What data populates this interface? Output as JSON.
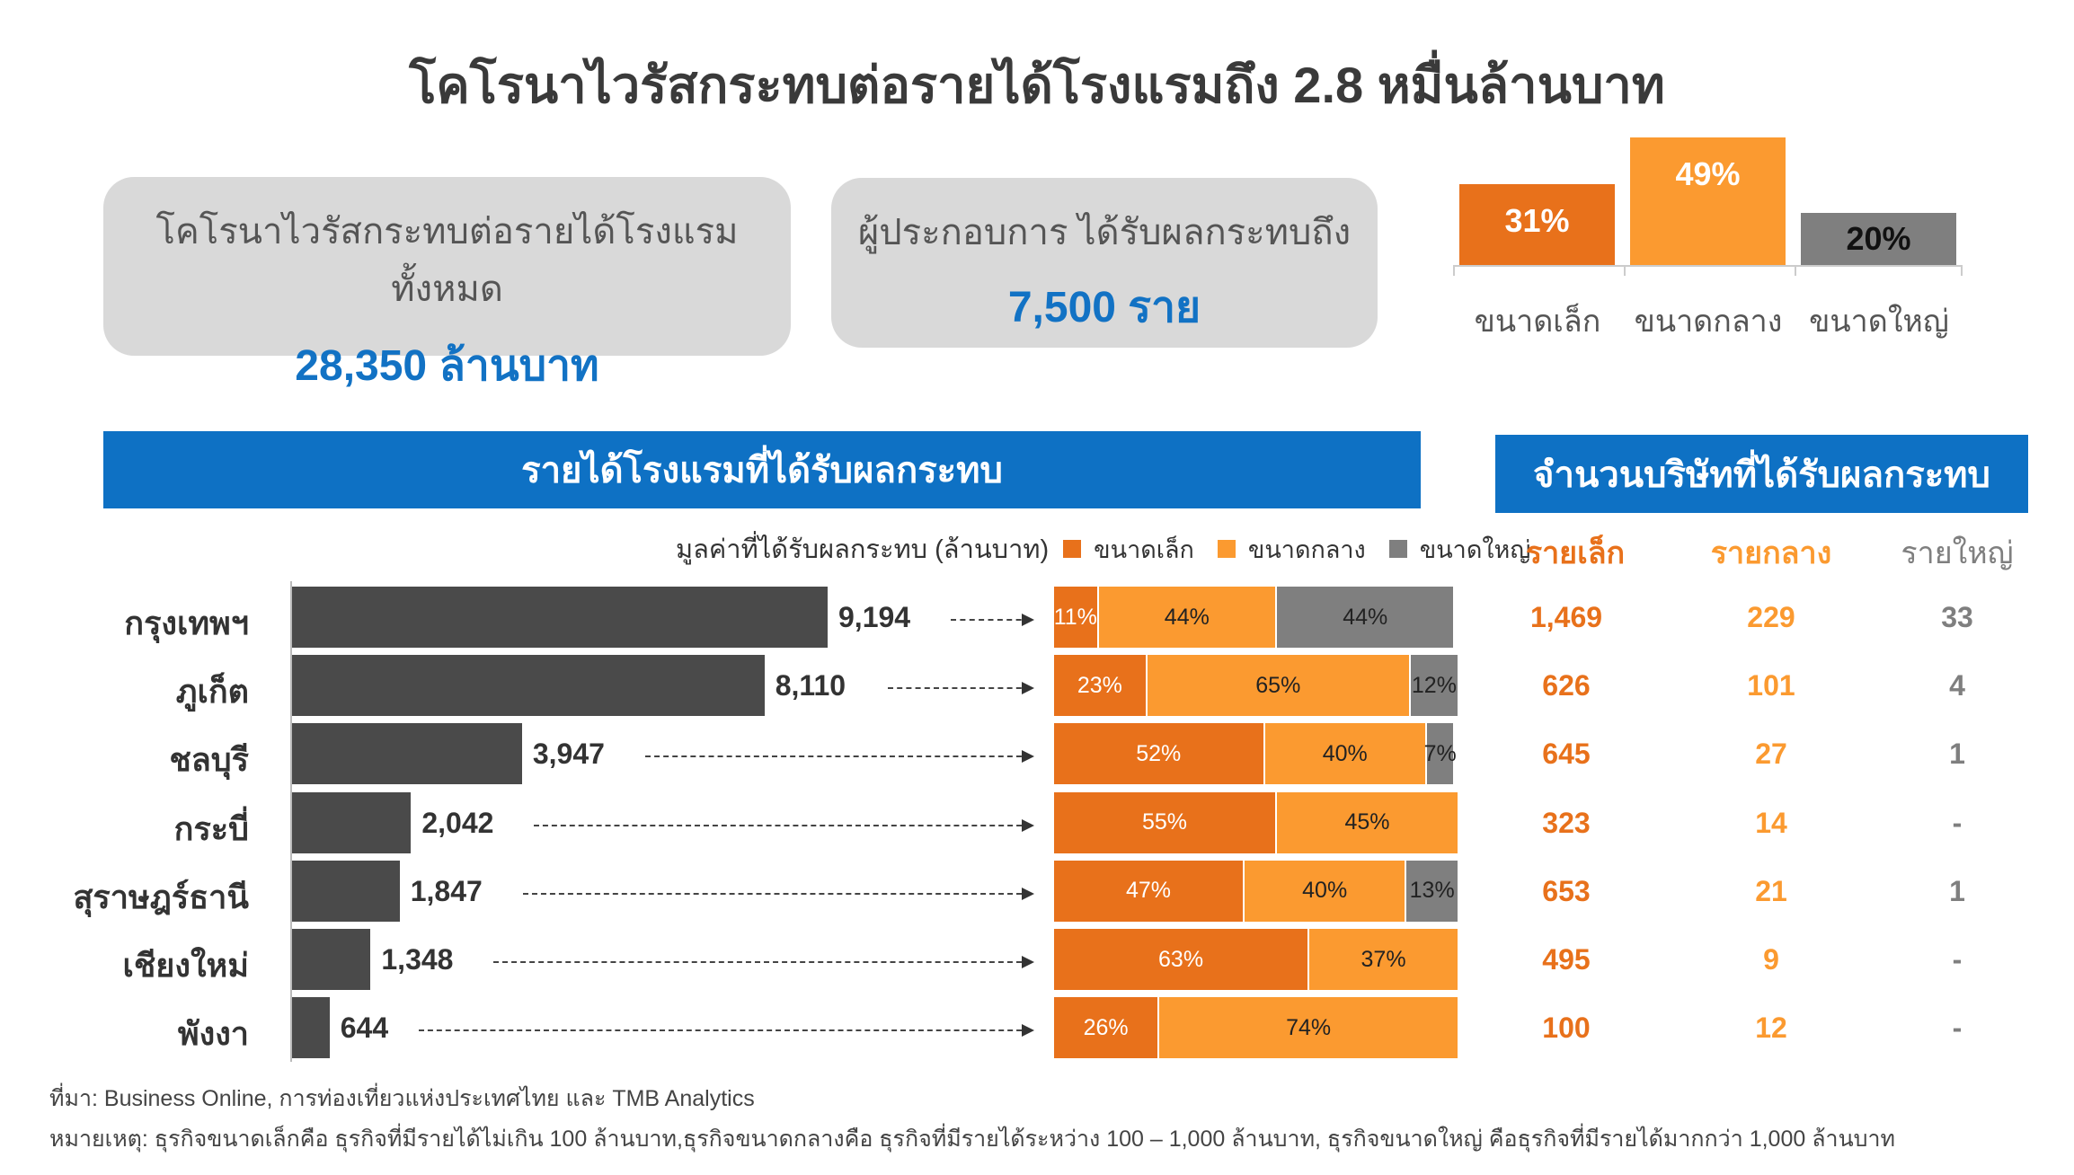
{
  "title": "โคโรนาไวรัสกระทบต่อรายได้โรงแรมถึง 2.8 หมื่นล้านบาท",
  "summary": [
    {
      "label": "โคโรนาไวรัสกระทบต่อรายได้โรงแรมทั้งหมด",
      "value": "28,350 ล้านบาท"
    },
    {
      "label": "ผู้ประกอบการ ได้รับผลกระทบถึง",
      "value": "7,500 ราย"
    }
  ],
  "colors": {
    "small": "#e8711b",
    "medium": "#fb9a30",
    "large": "#7f7f7f",
    "blue": "#0e71c4",
    "bar": "#4a4a4a"
  },
  "chart_data": [
    {
      "type": "bar",
      "title": "",
      "categories": [
        "ขนาดเล็ก",
        "ขนาดกลาง",
        "ขนาดใหญ่"
      ],
      "values": [
        31,
        49,
        20
      ],
      "labels": [
        "31%",
        "49%",
        "20%"
      ]
    },
    {
      "type": "bar",
      "title": "รายได้โรงแรมที่ได้รับผลกระทบ",
      "xlabel": "มูลค่าที่ได้รับผลกระทบ (ล้านบาท)",
      "categories": [
        "กรุงเทพฯ",
        "ภูเก็ต",
        "ชลบุรี",
        "กระบี่",
        "สุราษฎร์ธานี",
        "เชียงใหม่",
        "พังงา"
      ],
      "values": [
        9194,
        8110,
        3947,
        2042,
        1847,
        1348,
        644
      ],
      "labels": [
        "9,194",
        "8,110",
        "3,947",
        "2,042",
        "1,847",
        "1,348",
        "644"
      ]
    },
    {
      "type": "bar",
      "stacked": true,
      "legend": [
        "ขนาดเล็ก",
        "ขนาดกลาง",
        "ขนาดใหญ่"
      ],
      "categories": [
        "กรุงเทพฯ",
        "ภูเก็ต",
        "ชลบุรี",
        "กระบี่",
        "สุราษฎร์ธานี",
        "เชียงใหม่",
        "พังงา"
      ],
      "series": [
        {
          "name": "ขนาดเล็ก",
          "values": [
            11,
            23,
            52,
            55,
            47,
            63,
            26
          ],
          "labels": [
            "11%",
            "23%",
            "52%",
            "55%",
            "47%",
            "63%",
            "26%"
          ]
        },
        {
          "name": "ขนาดกลาง",
          "values": [
            44,
            65,
            40,
            45,
            40,
            37,
            74
          ],
          "labels": [
            "44%",
            "65%",
            "40%",
            "45%",
            "40%",
            "37%",
            "74%"
          ]
        },
        {
          "name": "ขนาดใหญ่",
          "values": [
            44,
            12,
            7,
            0,
            13,
            0,
            0
          ],
          "labels": [
            "44%",
            "12%",
            "7%",
            "",
            "13%",
            "",
            ""
          ]
        }
      ]
    },
    {
      "type": "table",
      "title": "จำนวนบริษัทที่ได้รับผลกระทบ",
      "columns": [
        "รายเล็ก",
        "รายกลาง",
        "รายใหญ่"
      ],
      "rows": [
        [
          "1,469",
          "229",
          "33"
        ],
        [
          "626",
          "101",
          "4"
        ],
        [
          "645",
          "27",
          "1"
        ],
        [
          "323",
          "14",
          "-"
        ],
        [
          "653",
          "21",
          "1"
        ],
        [
          "495",
          "9",
          "-"
        ],
        [
          "100",
          "12",
          "-"
        ]
      ]
    }
  ],
  "footer": {
    "source": "ที่มา: Business Online, การท่องเที่ยวแห่งประเทศไทย  และ TMB Analytics",
    "note": "หมายเหตุ: ธุรกิจขนาดเล็กคือ ธุรกิจที่มีรายได้ไม่เกิน  100 ล้านบาท,ธุรกิจขนาดกลางคือ ธุรกิจที่มีรายได้ระหว่าง  100 – 1,000 ล้านบาท, ธุรกิจขนาดใหญ่ คือธุรกิจที่มีรายได้มากกว่า 1,000 ล้านบาท"
  }
}
